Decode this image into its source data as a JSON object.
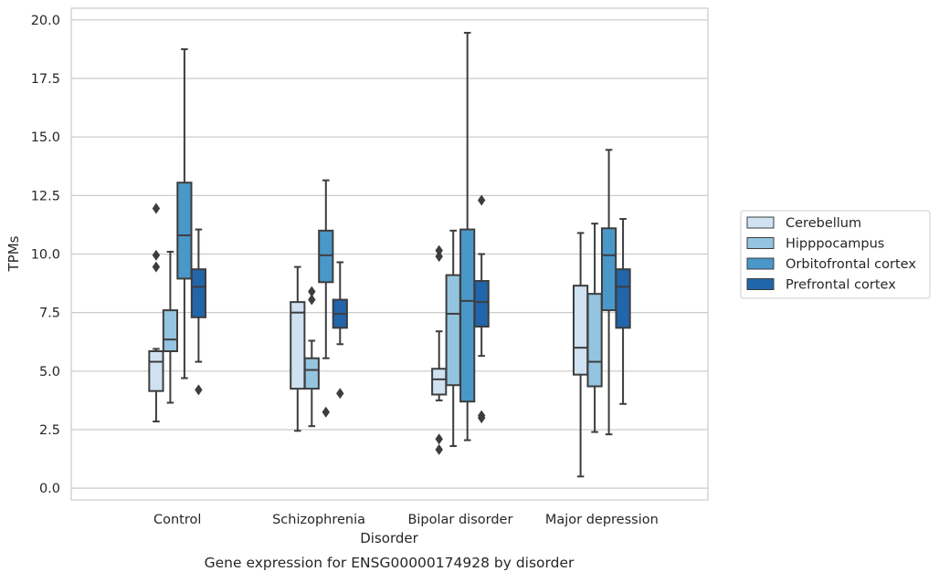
{
  "chart_data": {
    "type": "box",
    "title": "",
    "caption": "Gene expression for ENSG00000174928 by disorder",
    "xlabel": "Disorder",
    "ylabel": "TPMs",
    "ylim": [
      -0.5,
      20.5
    ],
    "yticks": [
      "0.0",
      "2.5",
      "5.0",
      "7.5",
      "10.0",
      "12.5",
      "15.0",
      "17.5",
      "20.0"
    ],
    "grid": "horizontal",
    "legend_position": "right",
    "categories": [
      "Control",
      "Schizophrenia",
      "Bipolar disorder",
      "Major depression"
    ],
    "series": [
      {
        "name": "Cerebellum",
        "color": "#d0e1f2",
        "boxes": [
          {
            "whisker_low": 2.85,
            "q1": 4.15,
            "median": 5.4,
            "q3": 5.85,
            "whisker_high": 5.95,
            "outliers": [
              9.45,
              9.95,
              11.95
            ]
          },
          {
            "whisker_low": 2.45,
            "q1": 4.25,
            "median": 7.5,
            "q3": 7.95,
            "whisker_high": 9.45,
            "outliers": []
          },
          {
            "whisker_low": 3.75,
            "q1": 4.0,
            "median": 4.65,
            "q3": 5.1,
            "whisker_high": 6.7,
            "outliers": [
              1.65,
              2.1,
              9.9,
              10.15
            ]
          },
          {
            "whisker_low": 0.5,
            "q1": 4.85,
            "median": 6.0,
            "q3": 8.65,
            "whisker_high": 10.9,
            "outliers": []
          }
        ]
      },
      {
        "name": "Hipppocampus",
        "color": "#94c4df",
        "boxes": [
          {
            "whisker_low": 3.65,
            "q1": 5.85,
            "median": 6.35,
            "q3": 7.6,
            "whisker_high": 10.1,
            "outliers": []
          },
          {
            "whisker_low": 2.65,
            "q1": 4.25,
            "median": 5.05,
            "q3": 5.55,
            "whisker_high": 6.3,
            "outliers": [
              8.05,
              8.4
            ]
          },
          {
            "whisker_low": 1.8,
            "q1": 4.4,
            "median": 7.45,
            "q3": 9.1,
            "whisker_high": 11.0,
            "outliers": []
          },
          {
            "whisker_low": 2.4,
            "q1": 4.35,
            "median": 5.4,
            "q3": 8.3,
            "whisker_high": 11.3,
            "outliers": []
          }
        ]
      },
      {
        "name": "Orbitofrontal cortex",
        "color": "#4a98c9",
        "boxes": [
          {
            "whisker_low": 4.7,
            "q1": 8.95,
            "median": 10.8,
            "q3": 13.05,
            "whisker_high": 18.75,
            "outliers": []
          },
          {
            "whisker_low": 5.55,
            "q1": 8.8,
            "median": 9.95,
            "q3": 11.0,
            "whisker_high": 13.15,
            "outliers": [
              3.25
            ]
          },
          {
            "whisker_low": 2.05,
            "q1": 3.7,
            "median": 8.0,
            "q3": 11.05,
            "whisker_high": 19.45,
            "outliers": []
          },
          {
            "whisker_low": 2.3,
            "q1": 7.6,
            "median": 9.95,
            "q3": 11.1,
            "whisker_high": 14.45,
            "outliers": []
          }
        ]
      },
      {
        "name": "Prefrontal cortex",
        "color": "#2165ab",
        "boxes": [
          {
            "whisker_low": 5.4,
            "q1": 7.3,
            "median": 8.6,
            "q3": 9.35,
            "whisker_high": 11.05,
            "outliers": [
              4.2
            ]
          },
          {
            "whisker_low": 6.15,
            "q1": 6.85,
            "median": 7.45,
            "q3": 8.05,
            "whisker_high": 9.65,
            "outliers": [
              4.05
            ]
          },
          {
            "whisker_low": 5.65,
            "q1": 6.9,
            "median": 7.95,
            "q3": 8.85,
            "whisker_high": 10.0,
            "outliers": [
              3.0,
              3.1,
              12.3
            ]
          },
          {
            "whisker_low": 3.6,
            "q1": 6.85,
            "median": 8.6,
            "q3": 9.35,
            "whisker_high": 11.5,
            "outliers": []
          }
        ]
      }
    ]
  }
}
